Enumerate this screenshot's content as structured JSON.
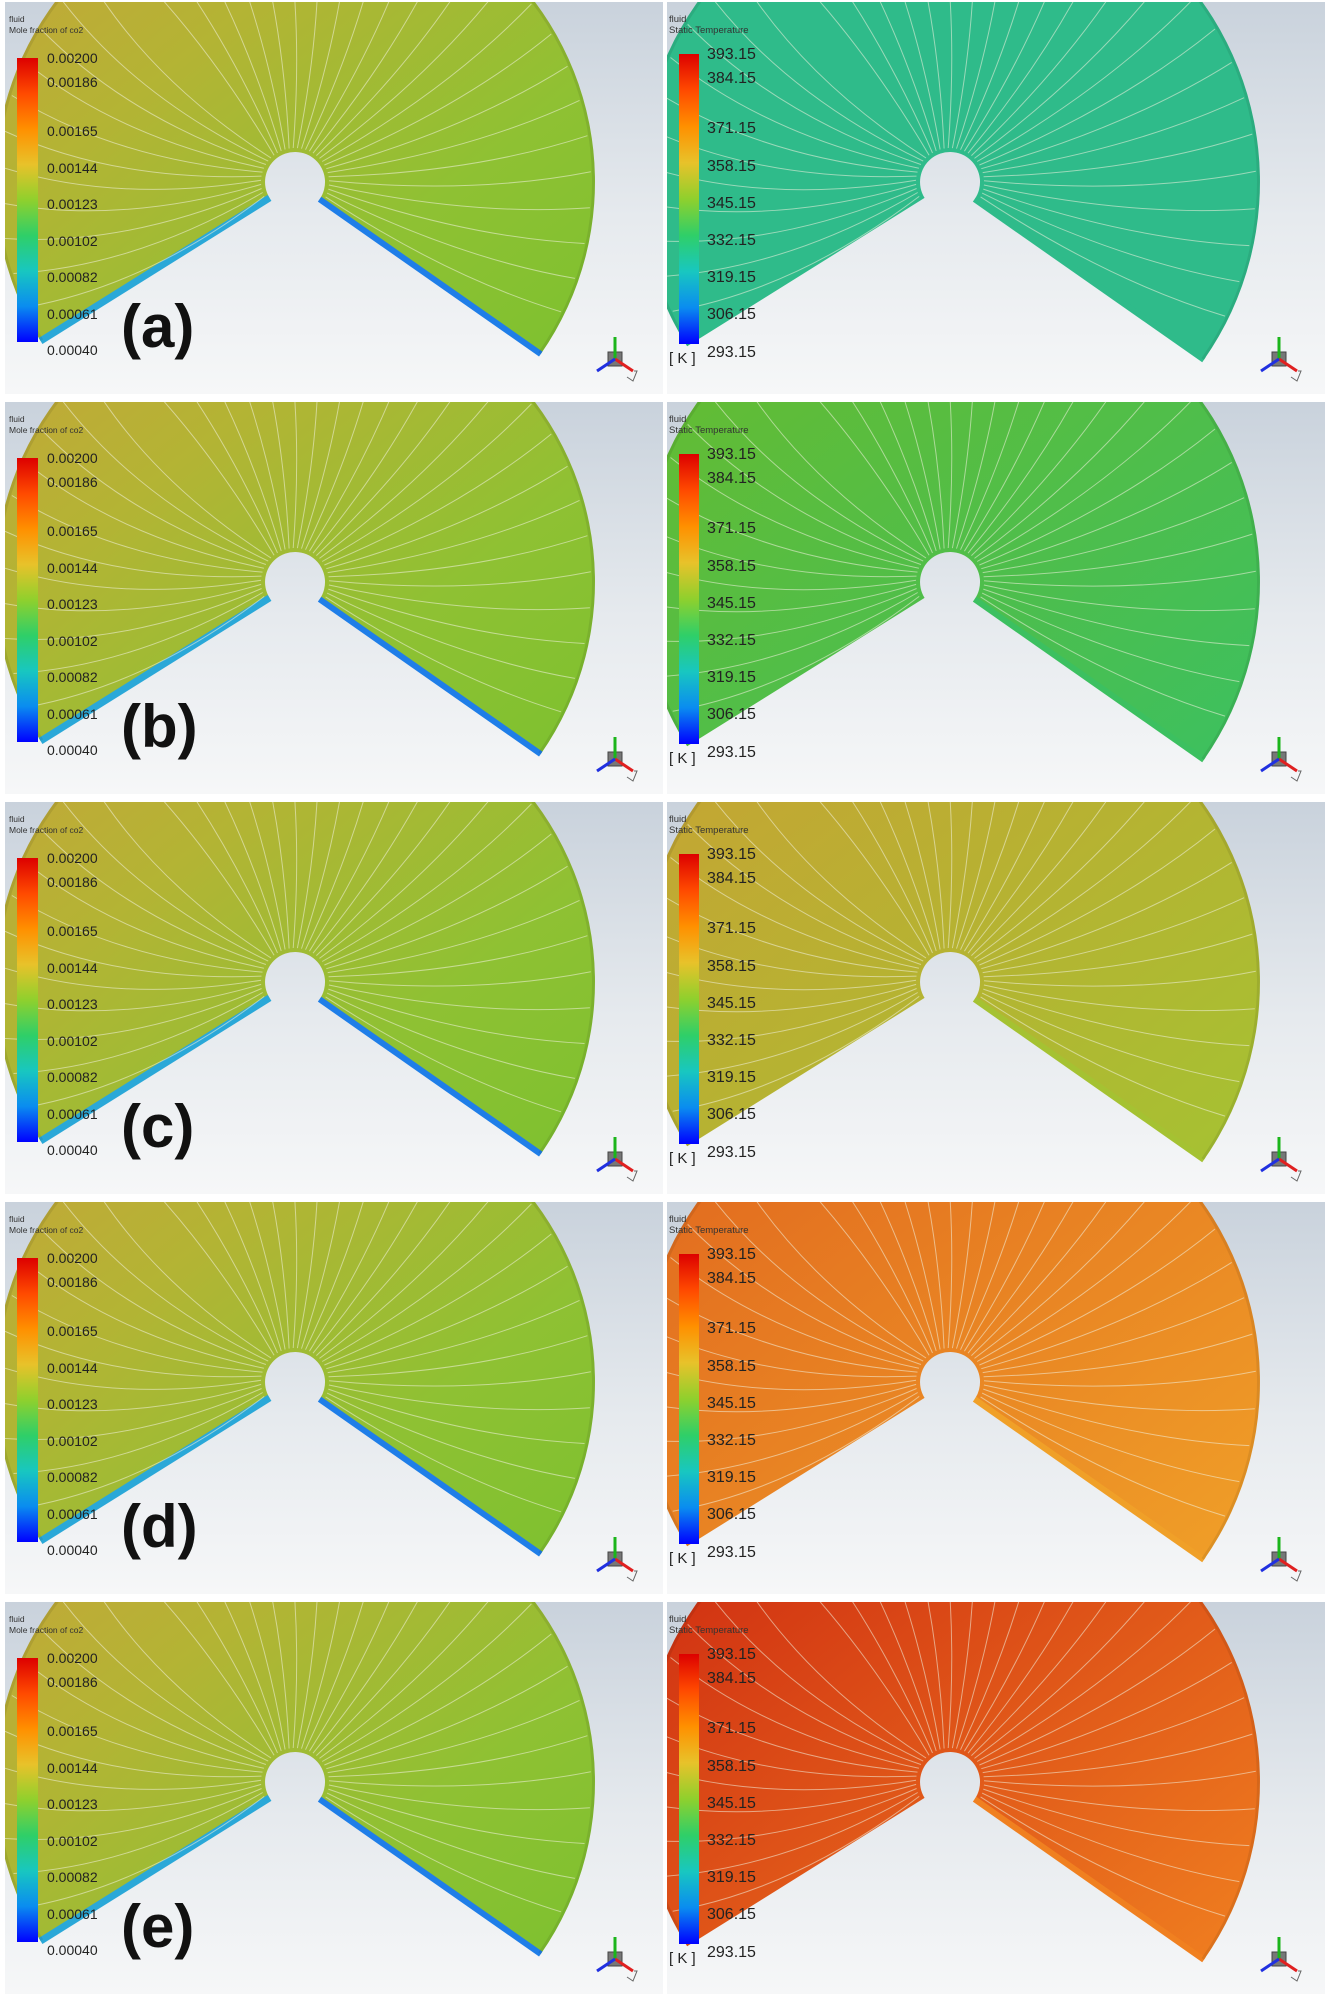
{
  "co2_legend": {
    "header_line1": "fluid",
    "header_line2": "Mole fraction of co2",
    "ticks": [
      "0.00200",
      "0.00186",
      "0.00165",
      "0.00144",
      "0.00123",
      "0.00102",
      "0.00082",
      "0.00061",
      "0.00040"
    ]
  },
  "temp_legend": {
    "header_line1": "fluid",
    "header_line2": "Static Temperature",
    "unit": "[ K ]",
    "ticks": [
      "393.15",
      "384.15",
      "371.15",
      "358.15",
      "345.15",
      "332.15",
      "319.15",
      "306.15",
      "293.15"
    ]
  },
  "rows": [
    {
      "label": "(a)",
      "co2_fill": "#a6bf34",
      "temp_fill": "#2fbb8a",
      "temp_edge": "#2fbb8a"
    },
    {
      "label": "(b)",
      "co2_fill": "#a6bf34",
      "temp_fill": "#6abb2c",
      "temp_edge": "#3cc060"
    },
    {
      "label": "(c)",
      "co2_fill": "#a6bf34",
      "temp_fill": "#c9a133",
      "temp_edge": "#a5c232"
    },
    {
      "label": "(d)",
      "co2_fill": "#a6bf34",
      "temp_fill": "#e0641e",
      "temp_edge": "#f0a028"
    },
    {
      "label": "(e)",
      "co2_fill": "#a6bf34",
      "temp_fill": "#cc2510",
      "temp_edge": "#f08020"
    }
  ],
  "colors": {
    "scale": [
      "#dd0000",
      "#ff4a00",
      "#ff9000",
      "#e8c22a",
      "#8fd02d",
      "#2fcf68",
      "#18c7c0",
      "#0a8cf0",
      "#0000ff"
    ],
    "contour": "#f2f2e0",
    "background_top": "#c9d2dc"
  }
}
